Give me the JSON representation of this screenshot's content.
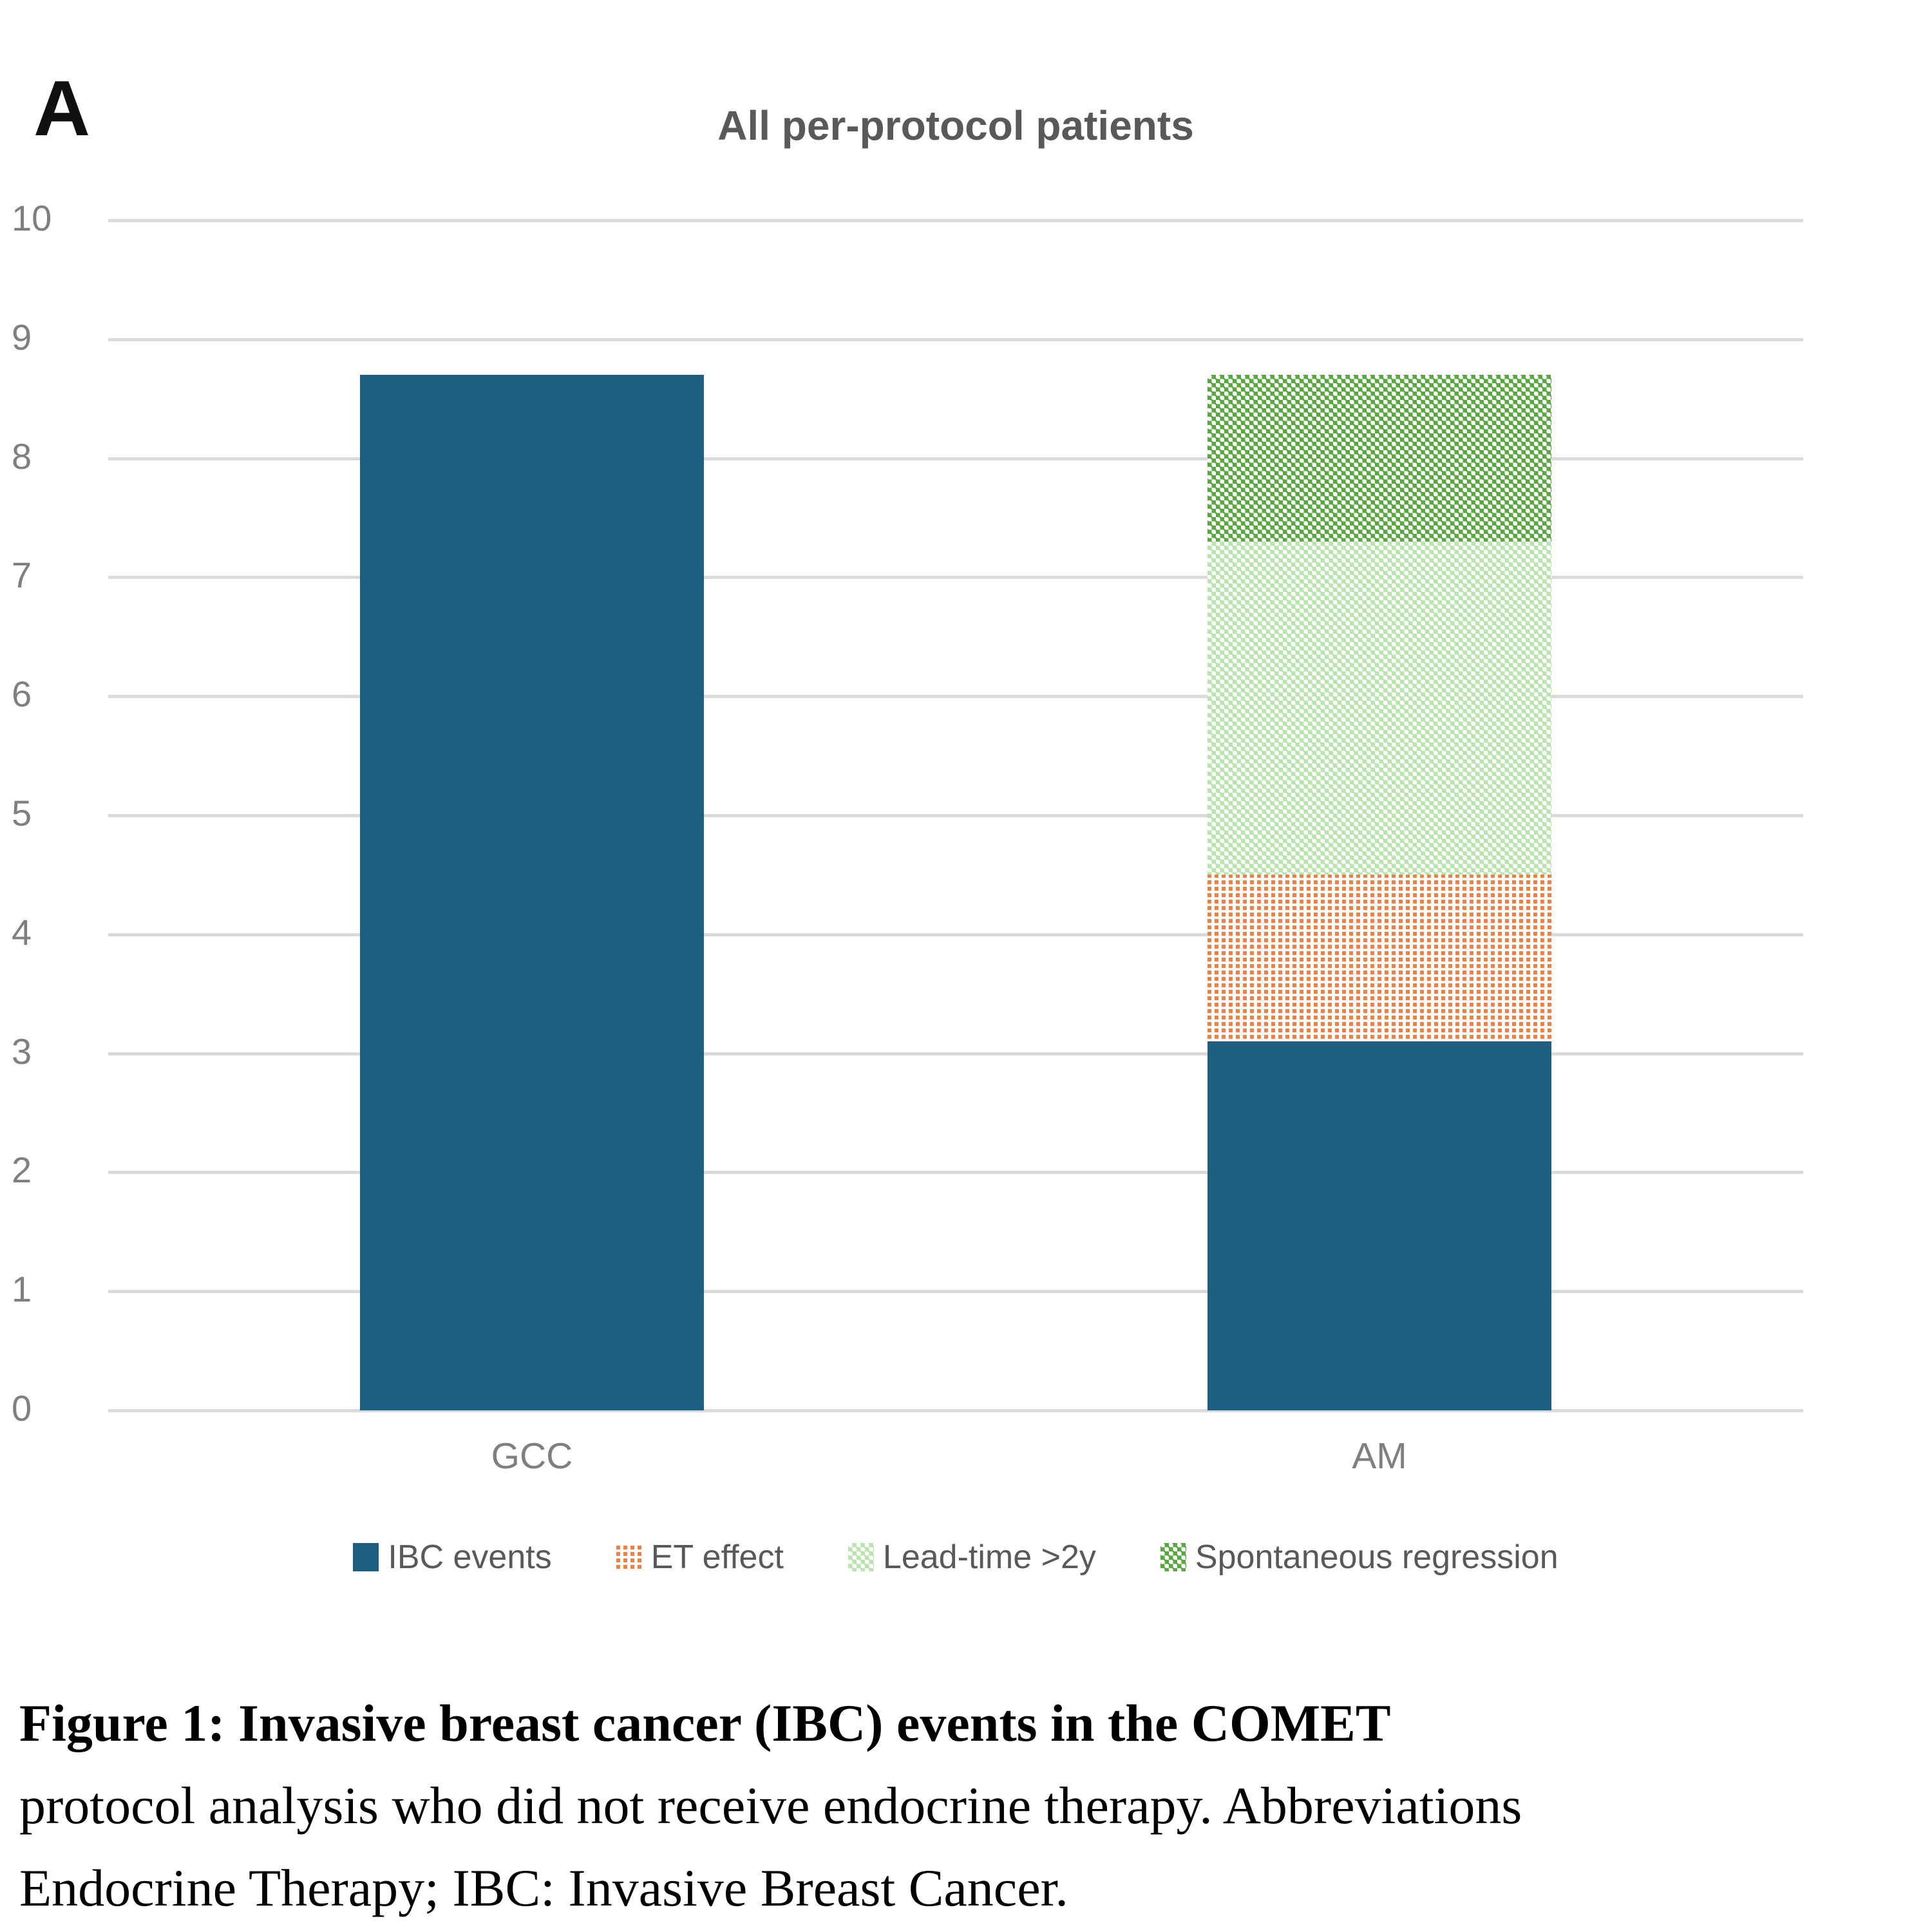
{
  "panel_label": "A",
  "chart_data": {
    "type": "bar",
    "stacked": true,
    "title": "All per-protocol patients",
    "categories": [
      "GCC",
      "AM"
    ],
    "series": [
      {
        "name": "IBC events",
        "values": [
          8.7,
          3.1
        ],
        "color": "#1e5e80",
        "pattern": "solid"
      },
      {
        "name": "ET effect",
        "values": [
          0,
          1.4
        ],
        "color": "#f08143",
        "pattern": "dotted-stripes"
      },
      {
        "name": "Lead-time >2y",
        "values": [
          0,
          2.8
        ],
        "color": "#b9e4ad",
        "pattern": "checker"
      },
      {
        "name": "Spontaneous regression",
        "values": [
          0,
          1.4
        ],
        "color": "#58a83f",
        "pattern": "checker"
      }
    ],
    "ylim": [
      0,
      10
    ],
    "yticks": [
      0,
      1,
      2,
      3,
      4,
      5,
      6,
      7,
      8,
      9,
      10
    ],
    "grid": true,
    "legend_position": "bottom",
    "bar_totals": {
      "GCC": 8.7,
      "AM": 8.7
    },
    "am_segment_boundaries": [
      3.1,
      4.5,
      7.3,
      8.7
    ]
  },
  "colors": {
    "gridline": "#dadada",
    "axis_label": "#7f7f7f",
    "title": "#595959",
    "legend_text": "#595959"
  },
  "caption": {
    "line1": "Figure 1: Invasive breast cancer (IBC) events in the COMET",
    "line2": "protocol analysis who did not receive endocrine therapy. Abbreviations",
    "line3": "Endocrine Therapy; IBC: Invasive Breast Cancer."
  }
}
